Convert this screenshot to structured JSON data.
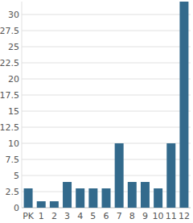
{
  "chart_data": {
    "type": "bar",
    "categories": [
      "PK",
      "1",
      "2",
      "3",
      "4",
      "5",
      "6",
      "7",
      "8",
      "9",
      "10",
      "11",
      "12"
    ],
    "values": [
      3,
      1,
      1,
      4,
      3,
      3,
      3,
      10,
      4,
      4,
      3,
      10,
      32
    ],
    "color": "#336a8c",
    "ylim": [
      0,
      32
    ],
    "yticks": [
      0,
      2.5,
      5,
      7.5,
      10,
      12.5,
      15,
      17.5,
      20,
      22.5,
      25,
      27.5,
      30
    ],
    "grid": true
  }
}
